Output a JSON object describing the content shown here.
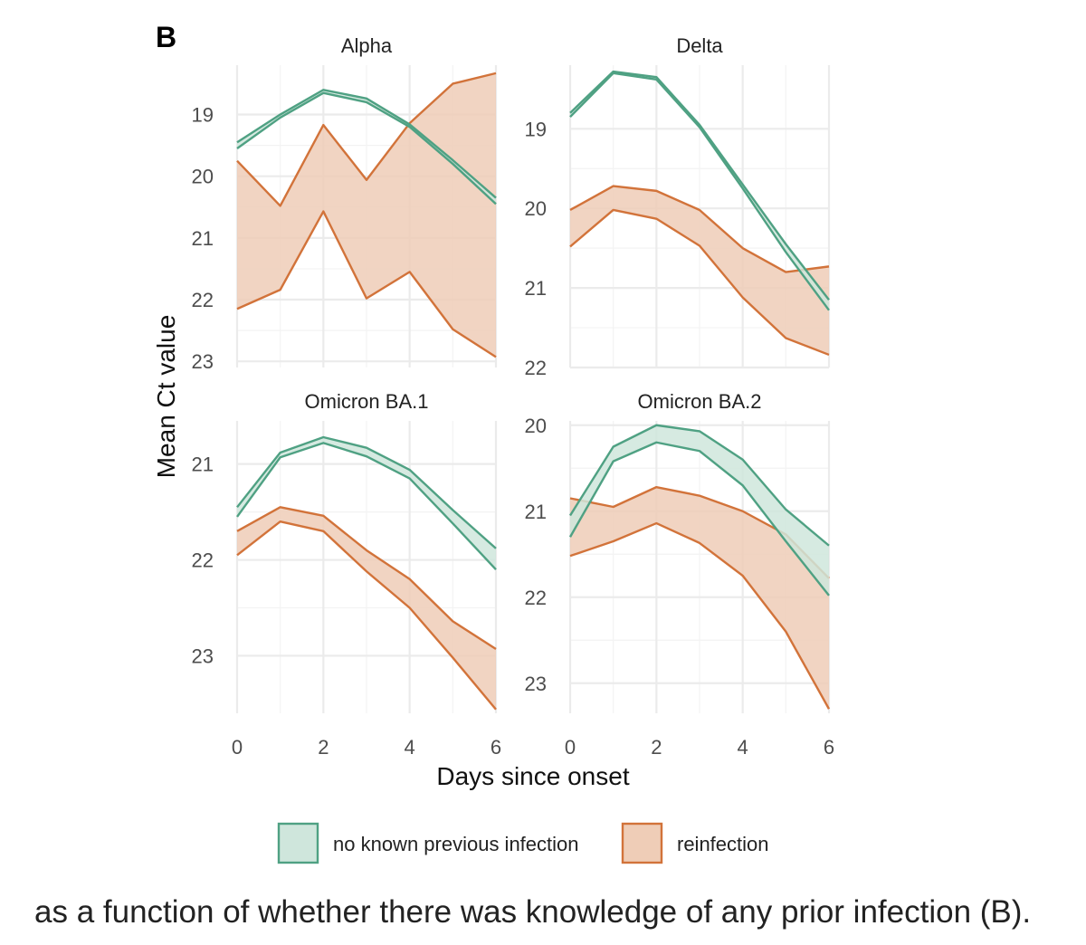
{
  "panel_letter": "B",
  "caption": "as a function of whether there was knowledge of any prior infection (B).",
  "colors": {
    "no_prev": "#4fa183",
    "no_prev_fill": "#cfe6dc",
    "reinfection": "#d2733a",
    "reinfection_fill": "#efcdb7",
    "grid": "#ebebeb",
    "tick_text": "#4d4d4d"
  },
  "chart_data": {
    "type": "area",
    "xlabel": "Days since onset",
    "ylabel": "Mean Ct value",
    "y_reversed": true,
    "grid": true,
    "legend_position": "bottom",
    "legend": [
      {
        "key": "no_prev",
        "label": "no known previous infection"
      },
      {
        "key": "reinfection",
        "label": "reinfection"
      }
    ],
    "x": [
      0,
      1,
      2,
      3,
      4,
      5,
      6
    ],
    "x_ticks": [
      0,
      2,
      4,
      6
    ],
    "panels": [
      {
        "title": "Alpha",
        "ylim": [
          18.2,
          23.1
        ],
        "y_ticks": [
          19,
          20,
          21,
          22,
          23
        ],
        "series": [
          {
            "key": "no_prev",
            "lower": [
              19.45,
              19.0,
              18.6,
              18.74,
              19.16,
              19.74,
              20.35
            ],
            "upper": [
              19.55,
              19.05,
              18.65,
              18.8,
              19.2,
              19.8,
              20.45
            ]
          },
          {
            "key": "reinfection",
            "lower": [
              19.75,
              20.48,
              19.17,
              20.06,
              19.14,
              18.5,
              18.33
            ],
            "upper": [
              22.15,
              21.84,
              20.57,
              21.98,
              21.55,
              22.48,
              22.93
            ]
          }
        ]
      },
      {
        "title": "Delta",
        "ylim": [
          18.2,
          22.0
        ],
        "y_ticks": [
          19,
          20,
          21,
          22
        ],
        "series": [
          {
            "key": "no_prev",
            "lower": [
              18.8,
              18.28,
              18.35,
              18.95,
              19.7,
              20.45,
              21.15
            ],
            "upper": [
              18.85,
              18.3,
              18.38,
              18.98,
              19.75,
              20.55,
              21.28
            ]
          },
          {
            "key": "reinfection",
            "lower": [
              20.02,
              19.72,
              19.78,
              20.02,
              20.5,
              20.8,
              20.73
            ],
            "upper": [
              20.48,
              20.02,
              20.13,
              20.47,
              21.12,
              21.63,
              21.84
            ]
          }
        ]
      },
      {
        "title": "Omicron BA.1",
        "ylim": [
          20.55,
          23.6
        ],
        "y_ticks": [
          21,
          22,
          23
        ],
        "series": [
          {
            "key": "no_prev",
            "lower": [
              21.45,
              20.88,
              20.72,
              20.83,
              21.06,
              21.48,
              21.88
            ],
            "upper": [
              21.55,
              20.93,
              20.78,
              20.92,
              21.15,
              21.62,
              22.1
            ]
          },
          {
            "key": "reinfection",
            "lower": [
              21.7,
              21.45,
              21.54,
              21.9,
              22.2,
              22.64,
              22.93
            ],
            "upper": [
              21.95,
              21.6,
              21.7,
              22.12,
              22.5,
              23.02,
              23.56
            ]
          }
        ]
      },
      {
        "title": "Omicron BA.2",
        "ylim": [
          19.95,
          23.35
        ],
        "y_ticks": [
          20,
          21,
          22,
          23
        ],
        "series": [
          {
            "key": "no_prev",
            "lower": [
              21.05,
              20.25,
              20.0,
              20.07,
              20.4,
              20.98,
              21.4
            ],
            "upper": [
              21.3,
              20.42,
              20.2,
              20.3,
              20.7,
              21.35,
              21.98
            ]
          },
          {
            "key": "reinfection",
            "lower": [
              20.85,
              20.95,
              20.72,
              20.82,
              21.0,
              21.27,
              21.78
            ],
            "upper": [
              21.52,
              21.35,
              21.14,
              21.37,
              21.75,
              22.4,
              23.3
            ]
          }
        ]
      }
    ]
  }
}
